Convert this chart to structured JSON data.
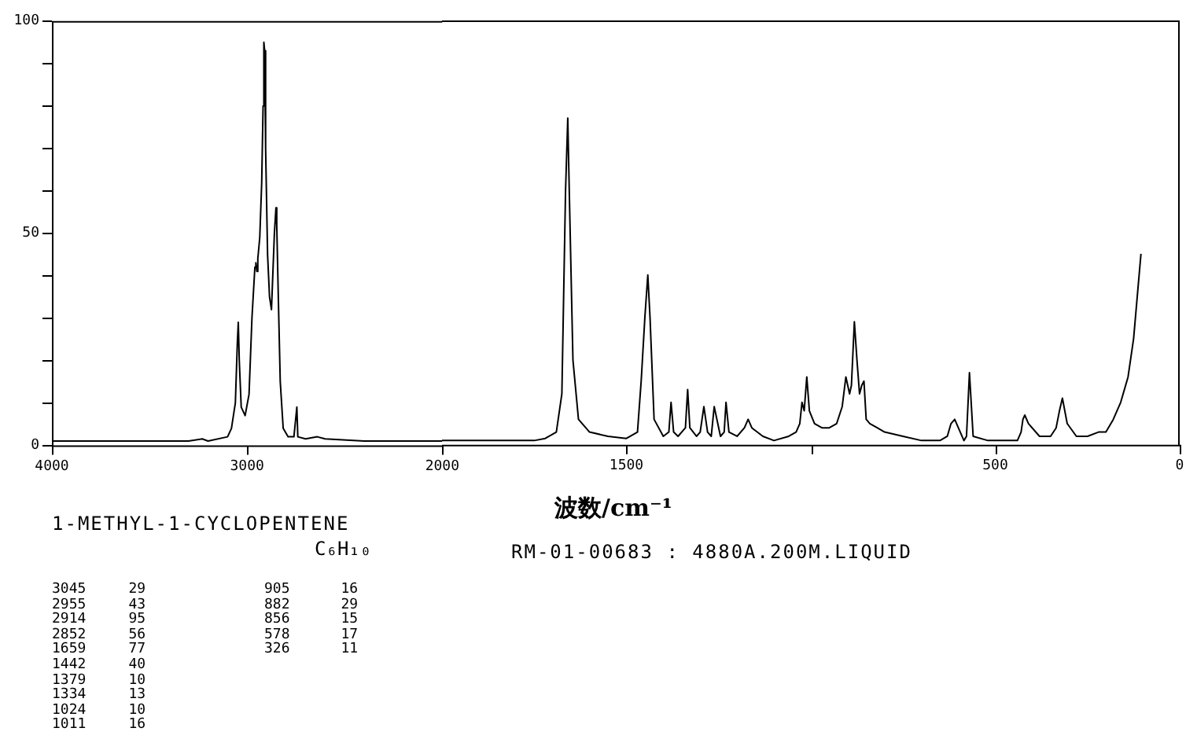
{
  "chart_data": [
    {
      "type": "line",
      "title": "1-METHYL-1-CYCLOPENTENE",
      "subtitle": "C₆H₁₀",
      "annotations": [
        "RM-01-00683 : 4880A.200M.LIQUID",
        "3045     29",
        "2955     43",
        "2914     95",
        "2852     56",
        "1659     77",
        "1442     40",
        "1379     10",
        "1334     13",
        "1024     10",
        "1011     16",
        "905      16",
        "882      29",
        "856      15",
        "578      17",
        "326      11"
      ],
      "xlim": [
        4000,
        2000
      ],
      "xticks": [
        4000,
        3000,
        2000
      ],
      "ylim": [
        0,
        100
      ],
      "yticks": [
        0,
        {
          "value": 10,
          "label": null
        },
        {
          "value": 20,
          "label": null
        },
        {
          "value": 30,
          "label": null
        },
        {
          "value": 40,
          "label": null
        },
        50,
        {
          "value": 60,
          "label": null
        },
        {
          "value": 70,
          "label": null
        },
        {
          "value": 80,
          "label": null
        },
        {
          "value": 90,
          "label": null
        },
        100
      ],
      "grid": false,
      "legend": false,
      "marker": "none",
      "line_style": "solid",
      "series": [
        {
          "color": "#000000",
          "x": [
            4000,
            3300,
            3230,
            3200,
            3100,
            3080,
            3060,
            3050,
            3045,
            3040,
            3030,
            3010,
            2990,
            2975,
            2960,
            2955,
            2950,
            2945,
            2935,
            2925,
            2918,
            2914,
            2910,
            2905,
            2895,
            2885,
            2875,
            2870,
            2860,
            2852,
            2848,
            2840,
            2830,
            2815,
            2790,
            2760,
            2745,
            2740,
            2700,
            2640,
            2600,
            2400,
            2300,
            2000
          ],
          "values": [
            1,
            1,
            1.5,
            1,
            2,
            4,
            10,
            24,
            29,
            20,
            9,
            7,
            12,
            30,
            42,
            43,
            41,
            44,
            49,
            62,
            80,
            95,
            93,
            70,
            45,
            35,
            32,
            38,
            50,
            56,
            52,
            35,
            15,
            4,
            2,
            2,
            9,
            2,
            1.5,
            2,
            1.5,
            1,
            1,
            1
          ]
        }
      ]
    },
    {
      "type": "line",
      "xlabel": "波数/cm⁻¹",
      "xlim": [
        2000,
        0
      ],
      "xticks": [
        {
          "value": 2000,
          "label": null
        },
        1500,
        {
          "value": 1000,
          "label": null
        },
        500,
        0
      ],
      "ylim": [
        0,
        100
      ],
      "tick_labels": "x",
      "grid": false,
      "legend": false,
      "marker": "none",
      "line_style": "solid",
      "series": [
        {
          "color": "#000000",
          "x": [
            2000,
            1750,
            1720,
            1690,
            1675,
            1665,
            1659,
            1655,
            1645,
            1630,
            1600,
            1550,
            1500,
            1470,
            1460,
            1450,
            1442,
            1436,
            1425,
            1400,
            1385,
            1379,
            1372,
            1360,
            1340,
            1334,
            1328,
            1310,
            1300,
            1290,
            1280,
            1270,
            1262,
            1245,
            1235,
            1230,
            1222,
            1200,
            1180,
            1170,
            1160,
            1130,
            1100,
            1060,
            1040,
            1030,
            1024,
            1018,
            1011,
            1004,
            990,
            970,
            950,
            930,
            915,
            905,
            895,
            890,
            882,
            875,
            868,
            862,
            856,
            850,
            840,
            820,
            800,
            750,
            700,
            650,
            630,
            620,
            610,
            595,
            585,
            578,
            570,
            560,
            520,
            460,
            440,
            430,
            425,
            420,
            410,
            380,
            350,
            335,
            326,
            318,
            305,
            280,
            250,
            220,
            200,
            180,
            160,
            140,
            125,
            115,
            105
          ],
          "values": [
            1,
            1,
            1.5,
            3,
            12,
            60,
            77,
            60,
            20,
            6,
            3,
            2,
            1.5,
            3,
            15,
            30,
            40,
            30,
            6,
            2,
            3,
            10,
            3,
            2,
            4,
            13,
            4,
            2,
            3,
            9,
            3,
            2,
            9,
            2,
            3,
            10,
            3,
            2,
            4,
            6,
            4,
            2,
            1,
            2,
            3,
            5,
            10,
            8,
            16,
            8,
            5,
            4,
            4,
            5,
            9,
            16,
            12,
            14,
            29,
            20,
            12,
            14,
            15,
            6,
            5,
            4,
            3,
            2,
            1,
            1,
            2,
            5,
            6,
            3,
            1,
            2,
            17,
            2,
            1,
            1,
            1,
            3,
            6,
            7,
            5,
            2,
            2,
            4,
            8,
            11,
            5,
            2,
            2,
            3,
            3,
            6,
            10,
            16,
            25,
            35,
            45
          ]
        }
      ]
    }
  ]
}
